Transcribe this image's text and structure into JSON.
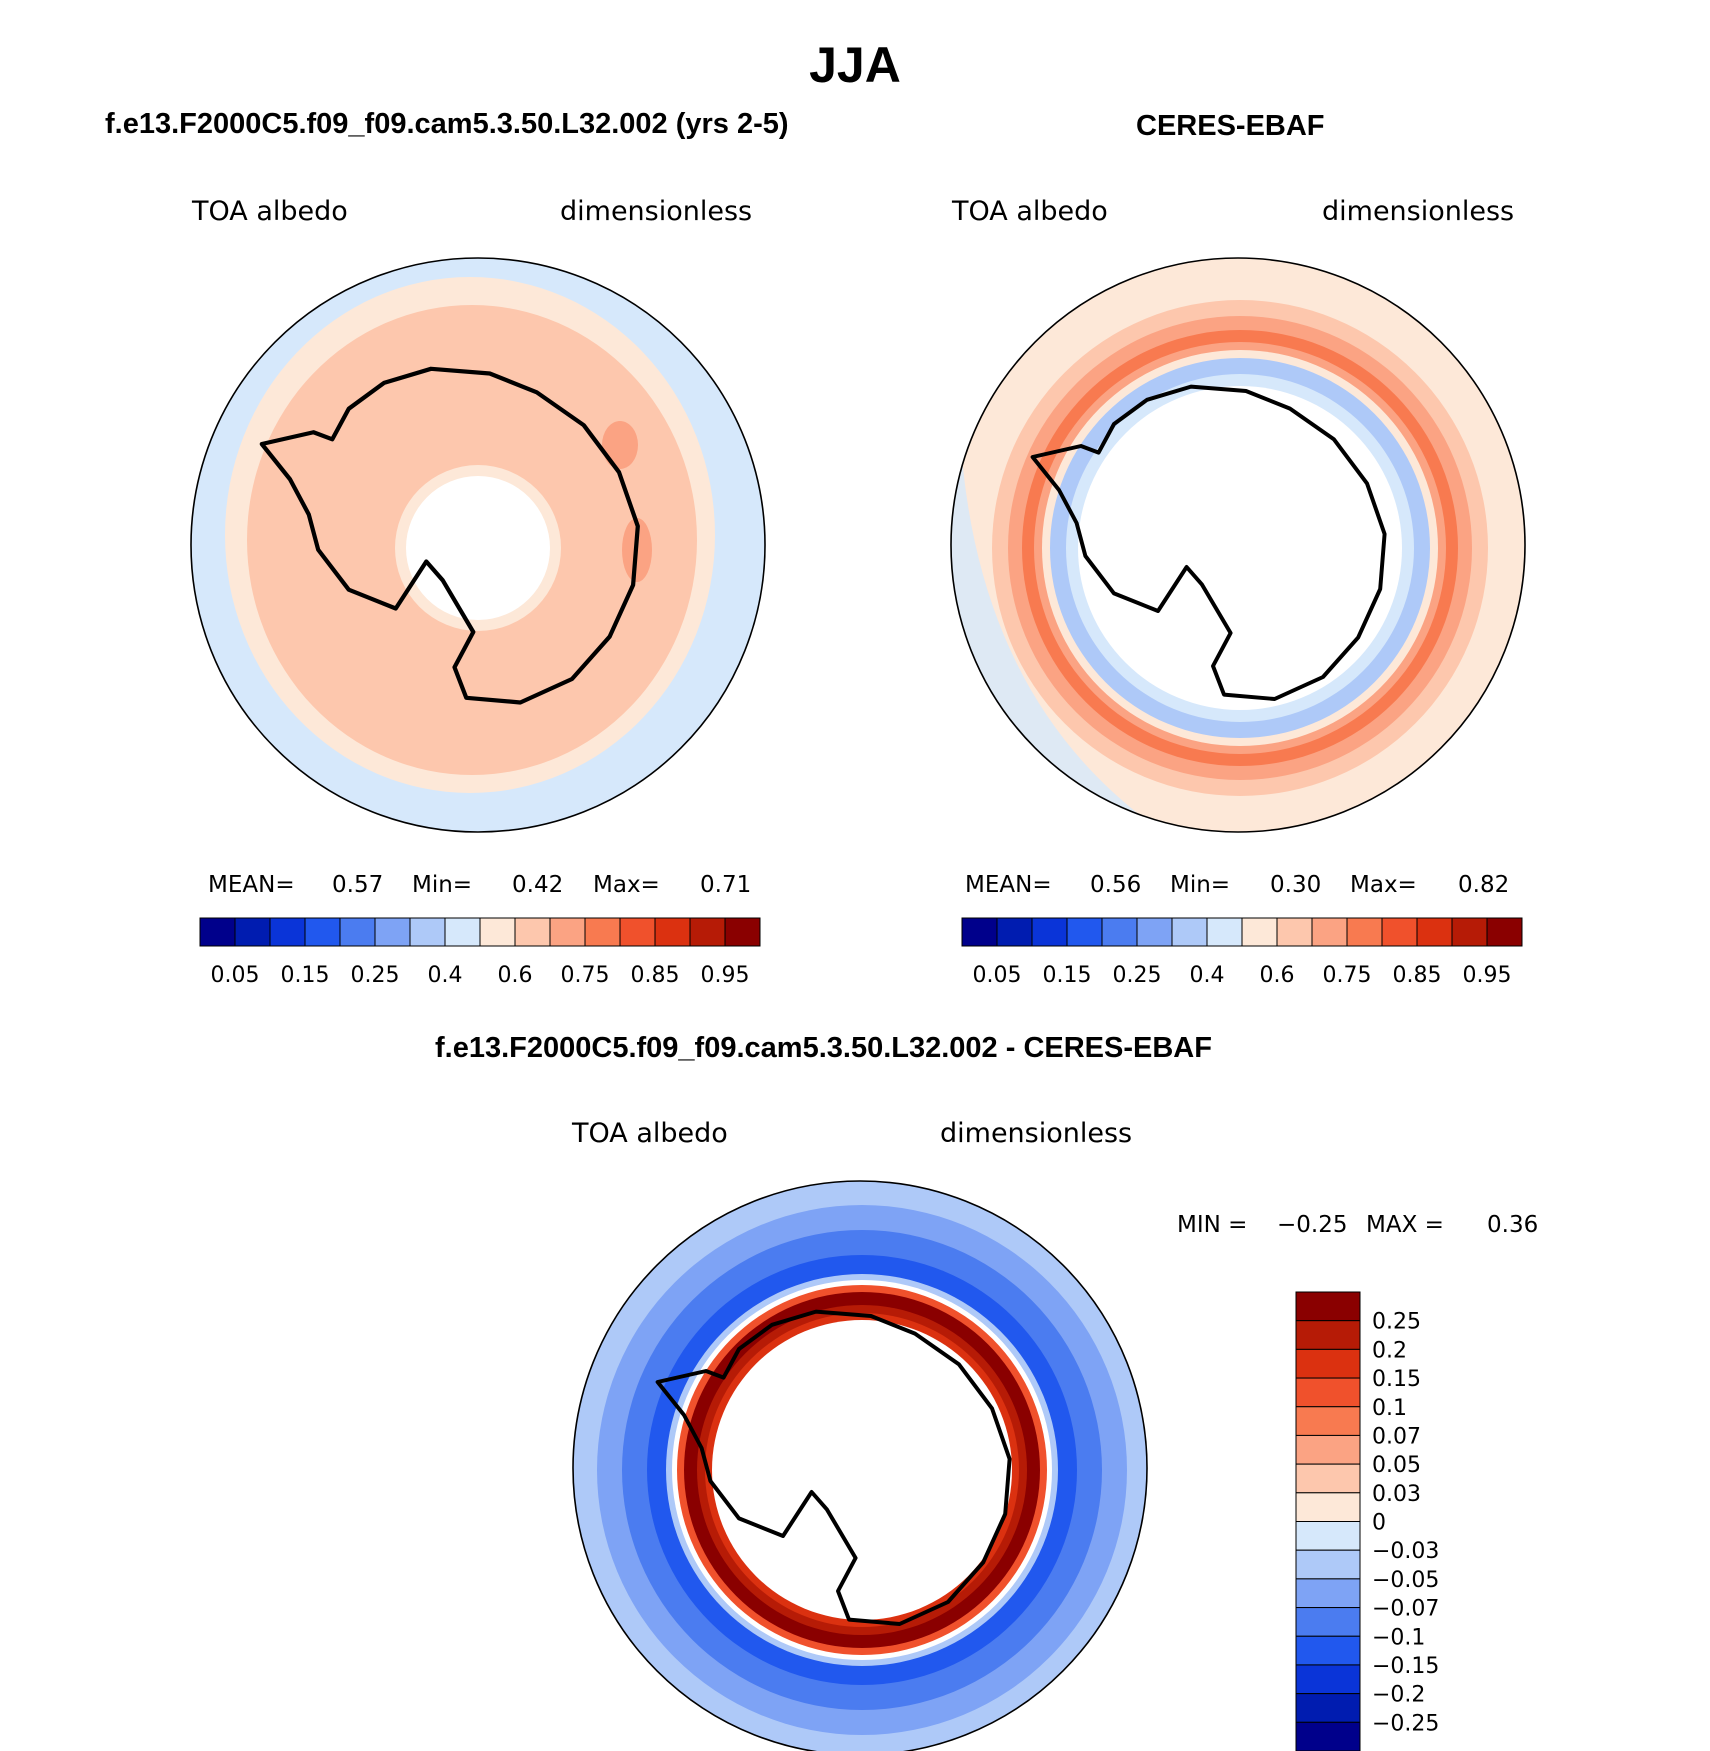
{
  "figure": {
    "season": "JJA"
  },
  "panels": {
    "model": {
      "title": "f.e13.F2000C5.f09_f09.cam5.3.50.L32.002 (yrs 2-5)",
      "variable": "TOA albedo",
      "units": "dimensionless",
      "stats": {
        "mean_label": "MEAN=",
        "mean_value": "0.57",
        "min_label": "Min=",
        "min_value": "0.42",
        "max_label": "Max=",
        "max_value": "0.71"
      }
    },
    "obs": {
      "title": "CERES-EBAF",
      "variable": "TOA albedo",
      "units": "dimensionless",
      "stats": {
        "mean_label": "MEAN=",
        "mean_value": "0.56",
        "min_label": "Min=",
        "min_value": "0.30",
        "max_label": "Max=",
        "max_value": "0.82"
      }
    },
    "diff": {
      "title": "f.e13.F2000C5.f09_f09.cam5.3.50.L32.002 - CERES-EBAF",
      "variable": "TOA albedo",
      "units": "dimensionless",
      "min_label": "MIN =",
      "min_value": "−0.25",
      "max_label": "MAX =",
      "max_value": "0.36"
    }
  },
  "albedo_colorbar": {
    "tick_labels": [
      "0.05",
      "0.15",
      "0.25",
      "0.4",
      "0.6",
      "0.75",
      "0.85",
      "0.95"
    ],
    "colors": [
      "#00008b",
      "#001cb0",
      "#0a34d8",
      "#2158ee",
      "#4b7cf0",
      "#7ea3f5",
      "#aec9f8",
      "#d6e8fb",
      "#fde8d8",
      "#fdc7ad",
      "#fba383",
      "#f87a50",
      "#f0512c",
      "#db3110",
      "#b61b06",
      "#8a0000"
    ]
  },
  "diff_colorbar": {
    "tick_labels": [
      "0.25",
      "0.2",
      "0.15",
      "0.1",
      "0.07",
      "0.05",
      "0.03",
      "0",
      "−0.03",
      "−0.05",
      "−0.07",
      "−0.1",
      "−0.15",
      "−0.2",
      "−0.25"
    ],
    "colors": [
      "#8a0000",
      "#b61b06",
      "#db3110",
      "#f0512c",
      "#f87a50",
      "#fba383",
      "#fdc7ad",
      "#fde8d8",
      "#d6e8fb",
      "#aec9f8",
      "#7ea3f5",
      "#4b7cf0",
      "#2158ee",
      "#0a34d8",
      "#001cb0",
      "#00008b"
    ]
  }
}
